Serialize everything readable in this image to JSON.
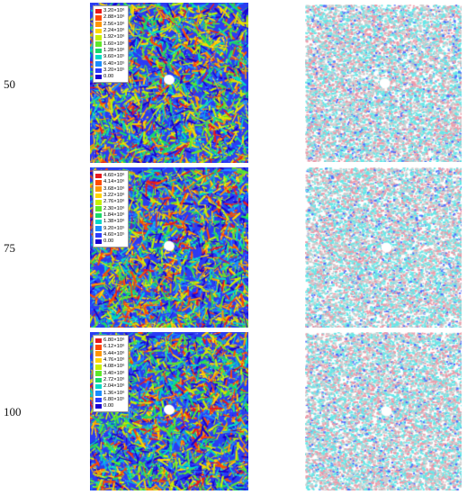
{
  "rows": [
    {
      "label": "50",
      "legend": [
        "3.20×10⁶",
        "2.88×10⁶",
        "2.56×10⁶",
        "2.24×10⁶",
        "1.92×10⁶",
        "1.60×10⁶",
        "1.28×10⁶",
        "9.60×10⁵",
        "6.40×10⁵",
        "3.20×10⁵",
        "0.00"
      ]
    },
    {
      "label": "75",
      "legend": [
        "4.60×10⁶",
        "4.14×10⁶",
        "3.68×10⁶",
        "3.22×10⁶",
        "2.76×10⁶",
        "2.30×10⁶",
        "1.84×10⁶",
        "1.38×10⁶",
        "9.20×10⁵",
        "4.60×10⁵",
        "0.00"
      ]
    },
    {
      "label": "100",
      "legend": [
        "6.80×10⁶",
        "6.12×10⁶",
        "5.44×10⁶",
        "4.76×10⁶",
        "4.08×10⁶",
        "3.40×10⁶",
        "2.72×10⁶",
        "2.04×10⁶",
        "1.36×10⁶",
        "6.80×10⁵",
        "0.00"
      ]
    }
  ],
  "legend_colors": [
    "#e8191c",
    "#ff4a00",
    "#ff9600",
    "#ffd500",
    "#c8f000",
    "#5ee82a",
    "#18d86a",
    "#00d9c8",
    "#1a8cff",
    "#2c3cff",
    "#1a00d0"
  ],
  "particle_palette": [
    "#ef9aa9",
    "#66e8e8",
    "#cfcfcf",
    "#5070ff"
  ]
}
